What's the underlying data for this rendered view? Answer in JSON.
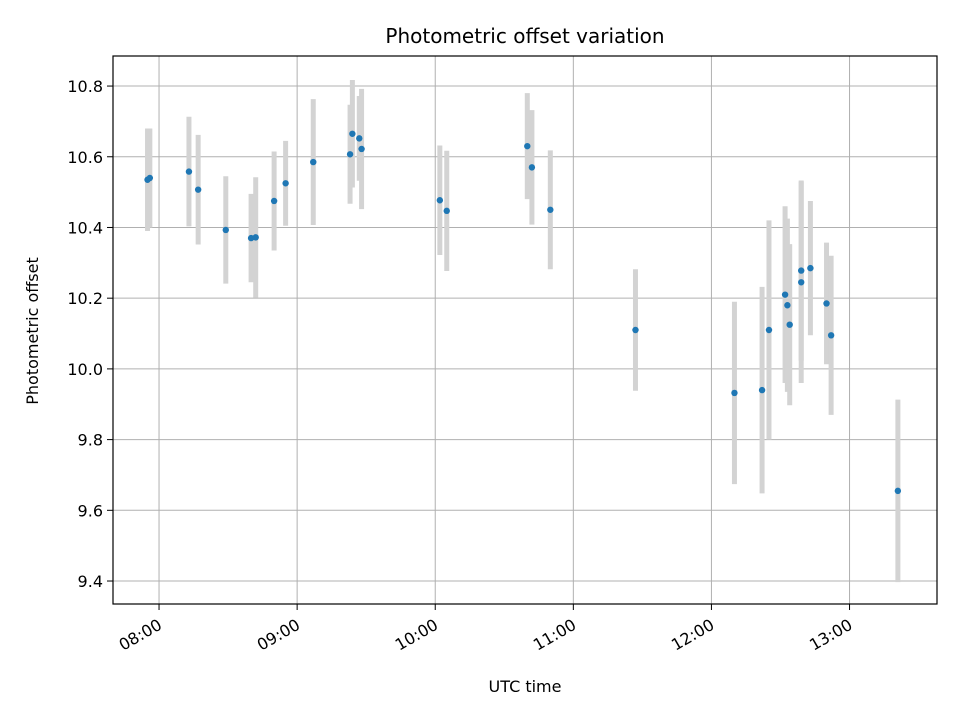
{
  "chart_data": {
    "type": "scatter",
    "title": "Photometric offset variation",
    "xlabel": "UTC time",
    "ylabel": "Photometric offset",
    "x_unit": "time",
    "xlim": [
      "07:40",
      "13:38"
    ],
    "ylim": [
      9.335,
      10.885
    ],
    "x_ticks": [
      "08:00",
      "09:00",
      "10:00",
      "11:00",
      "12:00",
      "13:00"
    ],
    "y_ticks": [
      9.4,
      9.6,
      9.8,
      10.0,
      10.2,
      10.4,
      10.6,
      10.8
    ],
    "y_tick_labels": [
      "9.4",
      "9.6",
      "9.8",
      "10.0",
      "10.2",
      "10.4",
      "10.6",
      "10.8"
    ],
    "grid": true,
    "colors": {
      "points": "#1f77b4",
      "errorbars": "#d3d3d3",
      "grid": "#b0b0b0"
    },
    "series": [
      {
        "points": [
          {
            "x": "07:55",
            "y": 10.535,
            "err": 0.145
          },
          {
            "x": "07:56",
            "y": 10.54,
            "err": 0.14
          },
          {
            "x": "08:13",
            "y": 10.558,
            "err": 0.155
          },
          {
            "x": "08:17",
            "y": 10.507,
            "err": 0.155
          },
          {
            "x": "08:29",
            "y": 10.393,
            "err": 0.152
          },
          {
            "x": "08:40",
            "y": 10.37,
            "err": 0.125
          },
          {
            "x": "08:42",
            "y": 10.372,
            "err": 0.17
          },
          {
            "x": "08:50",
            "y": 10.475,
            "err": 0.14
          },
          {
            "x": "08:55",
            "y": 10.525,
            "err": 0.12
          },
          {
            "x": "09:07",
            "y": 10.585,
            "err": 0.178
          },
          {
            "x": "09:23",
            "y": 10.607,
            "err": 0.14
          },
          {
            "x": "09:24",
            "y": 10.665,
            "err": 0.152
          },
          {
            "x": "09:27",
            "y": 10.652,
            "err": 0.12
          },
          {
            "x": "09:28",
            "y": 10.622,
            "err": 0.17
          },
          {
            "x": "10:02",
            "y": 10.477,
            "err": 0.155
          },
          {
            "x": "10:05",
            "y": 10.447,
            "err": 0.17
          },
          {
            "x": "10:40",
            "y": 10.63,
            "err": 0.15
          },
          {
            "x": "10:42",
            "y": 10.57,
            "err": 0.162
          },
          {
            "x": "10:50",
            "y": 10.45,
            "err": 0.168
          },
          {
            "x": "11:27",
            "y": 10.11,
            "err": 0.172
          },
          {
            "x": "12:10",
            "y": 9.932,
            "err": 0.258
          },
          {
            "x": "12:22",
            "y": 9.94,
            "err": 0.292
          },
          {
            "x": "12:25",
            "y": 10.11,
            "err": 0.31
          },
          {
            "x": "12:32",
            "y": 10.21,
            "err": 0.25
          },
          {
            "x": "12:33",
            "y": 10.18,
            "err": 0.245
          },
          {
            "x": "12:34",
            "y": 10.125,
            "err": 0.228
          },
          {
            "x": "12:39",
            "y": 10.245,
            "err": 0.285
          },
          {
            "x": "12:39",
            "y": 10.278,
            "err": 0.255
          },
          {
            "x": "12:43",
            "y": 10.285,
            "err": 0.19
          },
          {
            "x": "12:50",
            "y": 10.185,
            "err": 0.172
          },
          {
            "x": "12:52",
            "y": 10.095,
            "err": 0.225
          },
          {
            "x": "13:21",
            "y": 9.655,
            "err": 0.258
          }
        ]
      }
    ]
  }
}
